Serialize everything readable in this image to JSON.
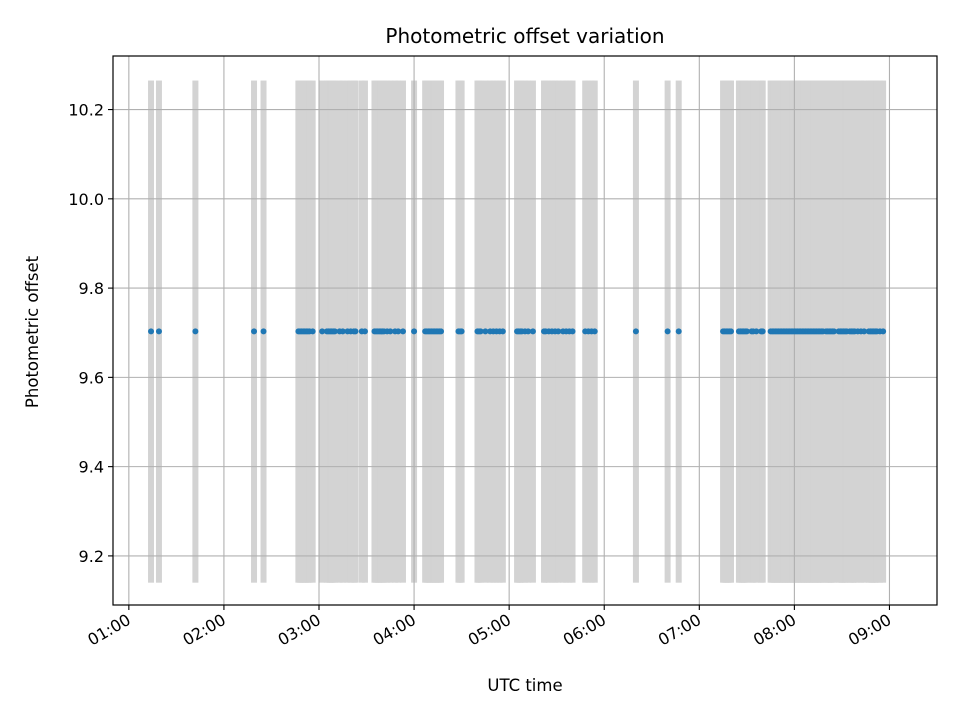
{
  "chart_data": {
    "type": "scatter",
    "title": "Photometric offset variation",
    "xlabel": "UTC time",
    "ylabel": "Photometric offset",
    "x_domain": [
      "00:50",
      "09:30"
    ],
    "ylim": [
      9.09,
      10.32
    ],
    "grid": true,
    "x_ticks": [
      "01:00",
      "02:00",
      "03:00",
      "04:00",
      "05:00",
      "06:00",
      "07:00",
      "08:00",
      "09:00"
    ],
    "y_ticks": [
      9.2,
      9.4,
      9.6,
      9.8,
      10.0,
      10.2
    ],
    "band_range": [
      9.14,
      10.265
    ],
    "series": [
      {
        "color": "#1f77b4",
        "x": [
          "01:14",
          "01:19",
          "01:42",
          "02:19",
          "02:25",
          "02:47",
          "02:48",
          "02:49",
          "02:50",
          "02:51",
          "02:52",
          "02:53",
          "02:54",
          "02:56",
          "03:02",
          "03:05",
          "03:06",
          "03:07",
          "03:08",
          "03:09",
          "03:10",
          "03:13",
          "03:15",
          "03:18",
          "03:20",
          "03:22",
          "03:23",
          "03:27",
          "03:29",
          "03:35",
          "03:36",
          "03:37",
          "03:38",
          "03:39",
          "03:40",
          "03:41",
          "03:43",
          "03:45",
          "03:48",
          "03:50",
          "03:53",
          "04:00",
          "04:07",
          "04:08",
          "04:09",
          "04:10",
          "04:11",
          "04:12",
          "04:13",
          "04:14",
          "04:15",
          "04:16",
          "04:17",
          "04:28",
          "04:29",
          "04:30",
          "04:40",
          "04:41",
          "04:42",
          "04:45",
          "04:48",
          "04:50",
          "04:52",
          "04:54",
          "04:56",
          "05:05",
          "05:06",
          "05:07",
          "05:08",
          "05:10",
          "05:12",
          "05:15",
          "05:22",
          "05:23",
          "05:25",
          "05:27",
          "05:29",
          "05:31",
          "05:34",
          "05:36",
          "05:38",
          "05:40",
          "05:48",
          "05:50",
          "05:52",
          "05:54",
          "06:20",
          "06:40",
          "06:47",
          "07:15",
          "07:16",
          "07:17",
          "07:18",
          "07:19",
          "07:20",
          "07:25",
          "07:26",
          "07:27",
          "07:28",
          "07:29",
          "07:30",
          "07:33",
          "07:34",
          "07:36",
          "07:39",
          "07:40",
          "07:45",
          "07:46",
          "07:47",
          "07:48",
          "07:49",
          "07:50",
          "07:51",
          "07:52",
          "07:53",
          "07:54",
          "07:55",
          "07:56",
          "07:57",
          "07:58",
          "07:59",
          "08:00",
          "08:01",
          "08:02",
          "08:03",
          "08:04",
          "08:05",
          "08:06",
          "08:07",
          "08:08",
          "08:09",
          "08:10",
          "08:11",
          "08:12",
          "08:13",
          "08:14",
          "08:15",
          "08:16",
          "08:17",
          "08:18",
          "08:20",
          "08:21",
          "08:22",
          "08:23",
          "08:24",
          "08:25",
          "08:28",
          "08:29",
          "08:30",
          "08:31",
          "08:32",
          "08:33",
          "08:35",
          "08:36",
          "08:37",
          "08:38",
          "08:40",
          "08:42",
          "08:44",
          "08:47",
          "08:48",
          "08:49",
          "08:50",
          "08:51",
          "08:52",
          "08:54",
          "08:56"
        ],
        "y_value": 9.703
      }
    ]
  }
}
